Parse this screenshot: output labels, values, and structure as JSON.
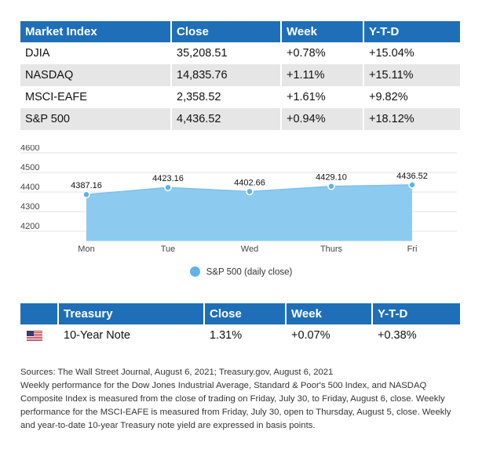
{
  "market_table": {
    "headers": [
      "Market Index",
      "Close",
      "Week",
      "Y-T-D"
    ],
    "rows": [
      [
        "DJIA",
        "35,208.51",
        "+0.78%",
        "+15.04%"
      ],
      [
        "NASDAQ",
        "14,835.76",
        "+1.11%",
        "+15.11%"
      ],
      [
        "MSCI-EAFE",
        "2,358.52",
        "+1.61%",
        "+9.82%"
      ],
      [
        "S&P 500",
        "4,436.52",
        "+0.94%",
        "+18.12%"
      ]
    ]
  },
  "chart_data": {
    "type": "area",
    "categories": [
      "Mon",
      "Tue",
      "Wed",
      "Thurs",
      "Fri"
    ],
    "series": [
      {
        "name": "S&P 500 (daily close)",
        "values": [
          4387.16,
          4423.16,
          4402.66,
          4429.1,
          4436.52
        ]
      }
    ],
    "data_labels": [
      "4387.16",
      "4423.16",
      "4402.66",
      "4429.10",
      "4436.52"
    ],
    "y_ticks": [
      "4600",
      "4500",
      "4400",
      "4300",
      "4200"
    ],
    "ylim": [
      4150,
      4600
    ],
    "grid": true,
    "legend": "bottom",
    "fill_color": "#8ccbef",
    "marker_color": "#5fb3e6"
  },
  "treasury_table": {
    "headers": [
      "Treasury",
      "Close",
      "Week",
      "Y-T-D"
    ],
    "rows": [
      [
        "10-Year Note",
        "1.31%",
        "+0.07%",
        "+0.38%"
      ]
    ],
    "flag_icon": "us-flag-icon"
  },
  "notes": {
    "sources": "Sources: The Wall Street Journal, August 6, 2021; Treasury.gov, August 6, 2021",
    "body": "Weekly performance for the Dow Jones Industrial Average, Standard & Poor's 500 Index, and NASDAQ Composite Index is measured from the close of trading on Friday, July 30, to Friday, August 6, close. Weekly performance for the MSCI-EAFE is measured from Friday, July 30, open to Thursday, August 5, close. Weekly and year-to-date 10-year Treasury note yield are expressed in basis points."
  },
  "colors": {
    "header_blue": "#1f6fb8",
    "row_alt": "#e6e6e6"
  }
}
